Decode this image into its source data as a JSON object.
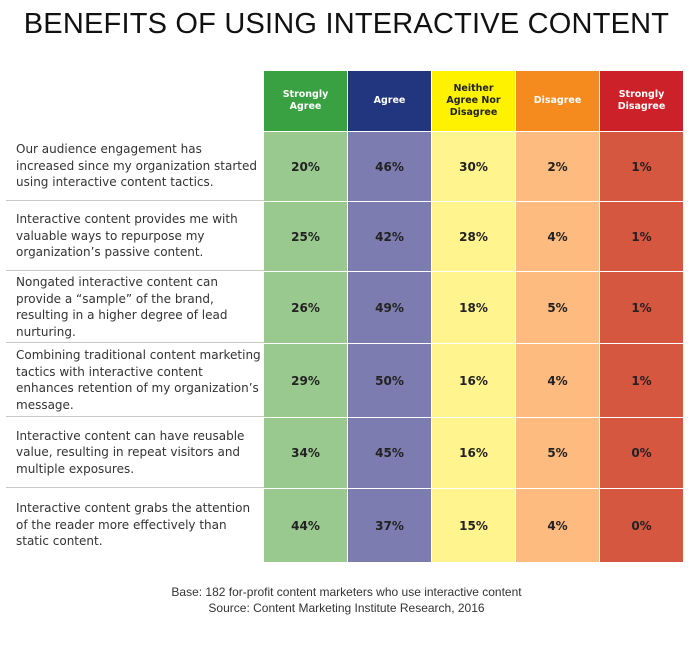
{
  "chart_data": {
    "type": "table",
    "title": "BENEFITS OF USING INTERACTIVE CONTENT",
    "columns": [
      {
        "label": "Strongly Agree",
        "header_color": "#3aa142",
        "cell_color": "#9ac98f",
        "text_color": "#ffffff"
      },
      {
        "label": "Agree",
        "header_color": "#22367f",
        "cell_color": "#7c7cb0",
        "text_color": "#ffffff"
      },
      {
        "label": "Neither Agree Nor Disagree",
        "header_color": "#fff200",
        "cell_color": "#fff48e",
        "text_color": "#222222"
      },
      {
        "label": "Disagree",
        "header_color": "#f58a1f",
        "cell_color": "#fdbb7f",
        "text_color": "#ffffff"
      },
      {
        "label": "Strongly Disagree",
        "header_color": "#cc2128",
        "cell_color": "#d65740",
        "text_color": "#ffffff"
      }
    ],
    "rows": [
      {
        "statement": "Our audience engagement has increased since my organization started using interactive content tactics.",
        "values": [
          "20%",
          "46%",
          "30%",
          "2%",
          "1%"
        ]
      },
      {
        "statement": "Interactive content provides me with valuable ways to repurpose my organization’s passive content.",
        "values": [
          "25%",
          "42%",
          "28%",
          "4%",
          "1%"
        ]
      },
      {
        "statement": "Nongated interactive content can provide a “sample” of the brand, resulting in a higher degree of lead nurturing.",
        "values": [
          "26%",
          "49%",
          "18%",
          "5%",
          "1%"
        ]
      },
      {
        "statement": "Combining traditional content marketing tactics with interactive content enhances retention of my organization’s message.",
        "values": [
          "29%",
          "50%",
          "16%",
          "4%",
          "1%"
        ]
      },
      {
        "statement": "Interactive content can have reusable value, resulting in repeat visitors and multiple exposures.",
        "values": [
          "34%",
          "45%",
          "16%",
          "5%",
          "0%"
        ]
      },
      {
        "statement": "Interactive content grabs the attention of the reader more effectively than static content.",
        "values": [
          "44%",
          "37%",
          "15%",
          "4%",
          "0%"
        ]
      }
    ]
  },
  "footer": {
    "base": "Base: 182 for-profit content marketers who use interactive content",
    "source": "Source: Content Marketing Institute Research, 2016"
  }
}
